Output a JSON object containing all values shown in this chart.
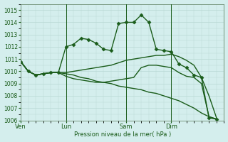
{
  "bg_color": "#d4eeed",
  "grid_color": "#b8d8d4",
  "line_color": "#1a5c1a",
  "marker": "D",
  "markersize": 2.5,
  "linewidth": 1.0,
  "title": "Pression niveau de la mer( hPa )",
  "ylim": [
    1006,
    1015.5
  ],
  "yticks": [
    1006,
    1007,
    1008,
    1009,
    1010,
    1011,
    1012,
    1013,
    1014,
    1015
  ],
  "xtick_labels": [
    "Ven",
    "Lun",
    "Sam",
    "Dim"
  ],
  "xtick_positions": [
    0,
    6,
    14,
    20
  ],
  "vlines": [
    6,
    14,
    20
  ],
  "xlim": [
    0,
    27
  ],
  "series": [
    {
      "x": [
        0,
        1,
        2,
        3,
        4,
        5,
        6,
        7,
        8,
        9,
        10,
        11,
        12,
        13,
        14,
        15,
        16,
        17,
        18,
        19,
        20,
        21,
        22,
        23,
        24,
        25,
        26
      ],
      "y": [
        1010.8,
        1010.0,
        1009.7,
        1009.8,
        1009.9,
        1009.9,
        1012.0,
        1012.2,
        1012.7,
        1012.6,
        1012.3,
        1011.8,
        1011.7,
        1013.9,
        1014.0,
        1014.0,
        1014.6,
        1014.0,
        1011.8,
        1011.7,
        1011.6,
        1010.6,
        1010.3,
        1009.7,
        1009.5,
        1006.2,
        1006.1
      ],
      "has_markers": true
    },
    {
      "x": [
        0,
        1,
        2,
        3,
        4,
        5,
        6,
        7,
        8,
        9,
        10,
        11,
        12,
        13,
        14,
        15,
        16,
        17,
        18,
        19,
        20,
        21,
        22,
        23,
        24,
        25,
        26
      ],
      "y": [
        1010.8,
        1010.0,
        1009.7,
        1009.8,
        1009.9,
        1009.9,
        1009.9,
        1010.0,
        1010.1,
        1010.2,
        1010.3,
        1010.4,
        1010.5,
        1010.7,
        1010.9,
        1011.0,
        1011.1,
        1011.2,
        1011.3,
        1011.3,
        1011.4,
        1011.2,
        1010.9,
        1010.5,
        1009.5,
        1008.0,
        1006.2
      ],
      "has_markers": false
    },
    {
      "x": [
        0,
        1,
        2,
        3,
        4,
        5,
        6,
        7,
        8,
        9,
        10,
        11,
        12,
        13,
        14,
        15,
        16,
        17,
        18,
        19,
        20,
        21,
        22,
        23,
        24,
        25,
        26
      ],
      "y": [
        1010.8,
        1010.0,
        1009.7,
        1009.8,
        1009.9,
        1009.9,
        1009.8,
        1009.7,
        1009.5,
        1009.4,
        1009.2,
        1009.1,
        1009.0,
        1008.8,
        1008.7,
        1008.6,
        1008.5,
        1008.3,
        1008.2,
        1008.0,
        1007.8,
        1007.6,
        1007.3,
        1007.0,
        1006.6,
        1006.3,
        1006.1
      ],
      "has_markers": false
    },
    {
      "x": [
        0,
        1,
        2,
        3,
        4,
        5,
        6,
        7,
        8,
        9,
        10,
        11,
        12,
        13,
        14,
        15,
        16,
        17,
        18,
        19,
        20,
        21,
        22,
        23,
        24,
        25,
        26
      ],
      "y": [
        1010.8,
        1010.0,
        1009.7,
        1009.8,
        1009.9,
        1009.9,
        1009.6,
        1009.4,
        1009.3,
        1009.2,
        1009.1,
        1009.1,
        1009.2,
        1009.3,
        1009.4,
        1009.5,
        1010.3,
        1010.5,
        1010.5,
        1010.4,
        1010.3,
        1009.9,
        1009.6,
        1009.5,
        1009.0,
        1006.3,
        1006.1
      ],
      "has_markers": false
    }
  ]
}
